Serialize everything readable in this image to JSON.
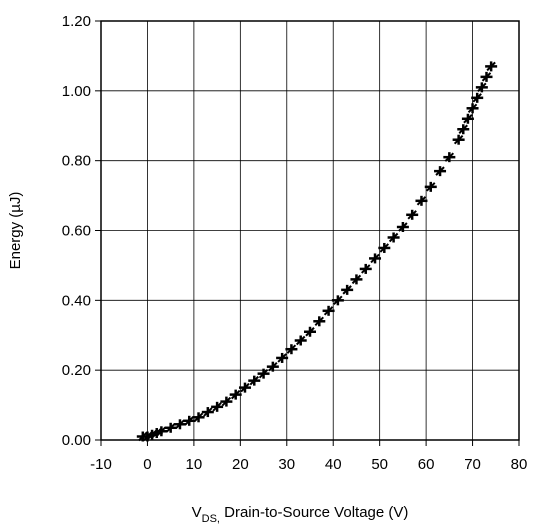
{
  "chart_data": {
    "type": "scatter",
    "title": "",
    "xlabel_prefix": "V",
    "xlabel_subscript": "DS,",
    "xlabel_rest": " Drain-to-Source Voltage (V)",
    "ylabel": "Energy (µJ)",
    "xlim": [
      -10,
      80
    ],
    "ylim": [
      0,
      1.2
    ],
    "x_ticks": [
      -10,
      0,
      10,
      20,
      30,
      40,
      50,
      60,
      70,
      80
    ],
    "x_tick_labels": [
      "-10",
      "0",
      "10",
      "20",
      "30",
      "40",
      "50",
      "60",
      "70",
      "80"
    ],
    "y_ticks": [
      0,
      0.2,
      0.4,
      0.6,
      0.8,
      1.0,
      1.2
    ],
    "y_tick_labels": [
      "0.00",
      "0.20",
      "0.40",
      "0.60",
      "0.80",
      "1.00",
      "1.20"
    ],
    "grid": true,
    "marker_color": "#000000",
    "series": [
      {
        "x": [
          -1,
          0,
          1,
          2,
          3,
          5,
          7,
          9,
          11,
          13,
          15,
          17,
          19,
          21,
          23,
          25,
          27,
          29,
          31,
          33,
          35,
          37,
          39,
          41,
          43,
          45,
          47,
          49,
          51,
          53,
          55,
          57,
          59,
          61,
          63,
          65,
          67,
          68,
          69,
          70,
          71,
          72,
          73,
          74
        ],
        "y": [
          0.01,
          0.01,
          0.015,
          0.02,
          0.025,
          0.035,
          0.045,
          0.055,
          0.065,
          0.08,
          0.095,
          0.11,
          0.13,
          0.15,
          0.17,
          0.19,
          0.21,
          0.235,
          0.26,
          0.285,
          0.31,
          0.34,
          0.37,
          0.4,
          0.43,
          0.46,
          0.49,
          0.52,
          0.55,
          0.58,
          0.61,
          0.645,
          0.685,
          0.725,
          0.77,
          0.81,
          0.86,
          0.89,
          0.92,
          0.95,
          0.98,
          1.01,
          1.04,
          1.07
        ]
      }
    ]
  }
}
